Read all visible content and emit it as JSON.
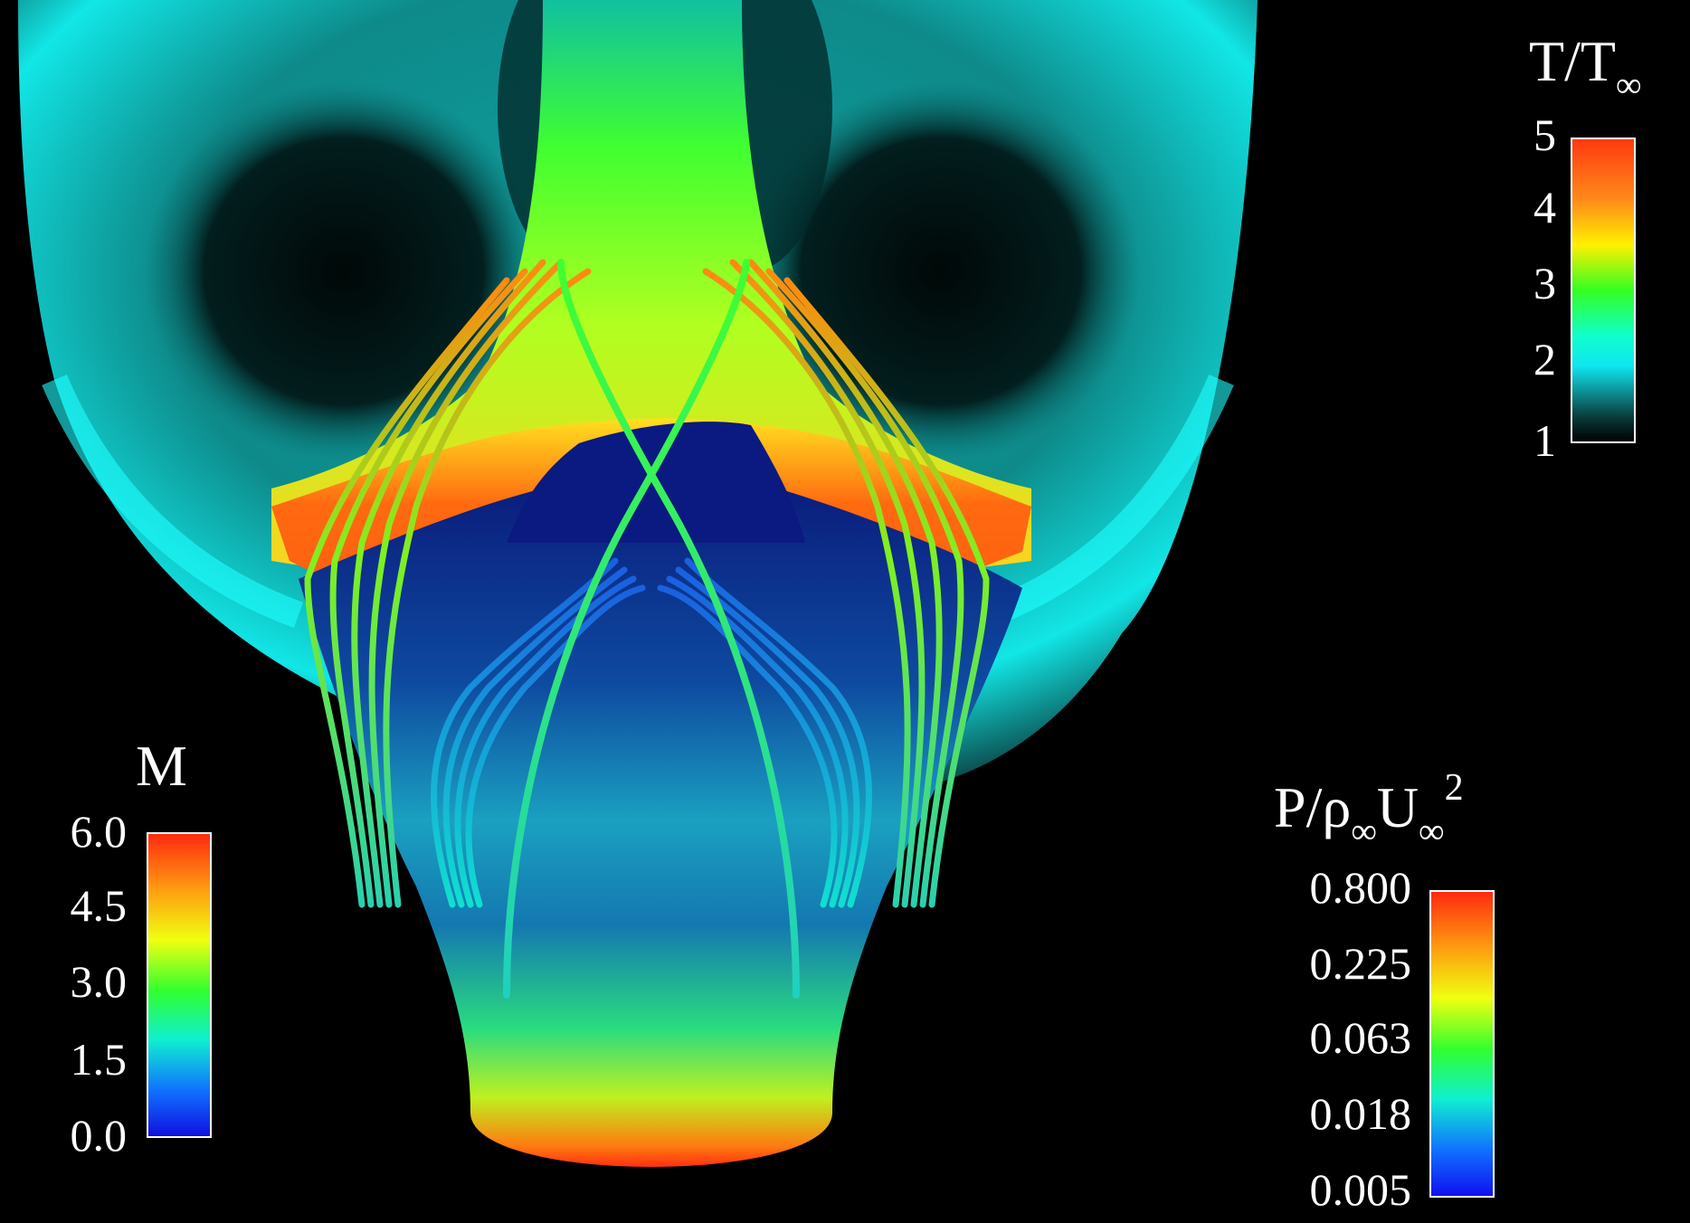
{
  "legends": {
    "temperature": {
      "title_main": "T/T",
      "title_sub": "∞",
      "ticks": [
        "5",
        "4",
        "3",
        "2",
        "1"
      ],
      "colormap": [
        "#ff3a10",
        "#ff8a1a",
        "#fff000",
        "#33ff22",
        "#10ffcc",
        "#0fe6f0",
        "#0a3a3a",
        "#000000"
      ]
    },
    "mach": {
      "title": "M",
      "ticks": [
        "6.0",
        "4.5",
        "3.0",
        "1.5",
        "0.0"
      ],
      "colormap": [
        "#ff2a10",
        "#ff9a10",
        "#f0ff10",
        "#30ff30",
        "#10f0d0",
        "#1070ff",
        "#1010e0"
      ]
    },
    "pressure": {
      "title_p": "P/ρ",
      "title_sub1": "∞",
      "title_u": "U",
      "title_sub2": "∞",
      "title_sup": "2",
      "ticks": [
        "0.800",
        "0.225",
        "0.063",
        "0.018",
        "0.005"
      ],
      "colormap": [
        "#ff2a10",
        "#ff9a10",
        "#f0ff10",
        "#30ff30",
        "#10f0d0",
        "#1070ff",
        "#1010f0"
      ]
    }
  }
}
